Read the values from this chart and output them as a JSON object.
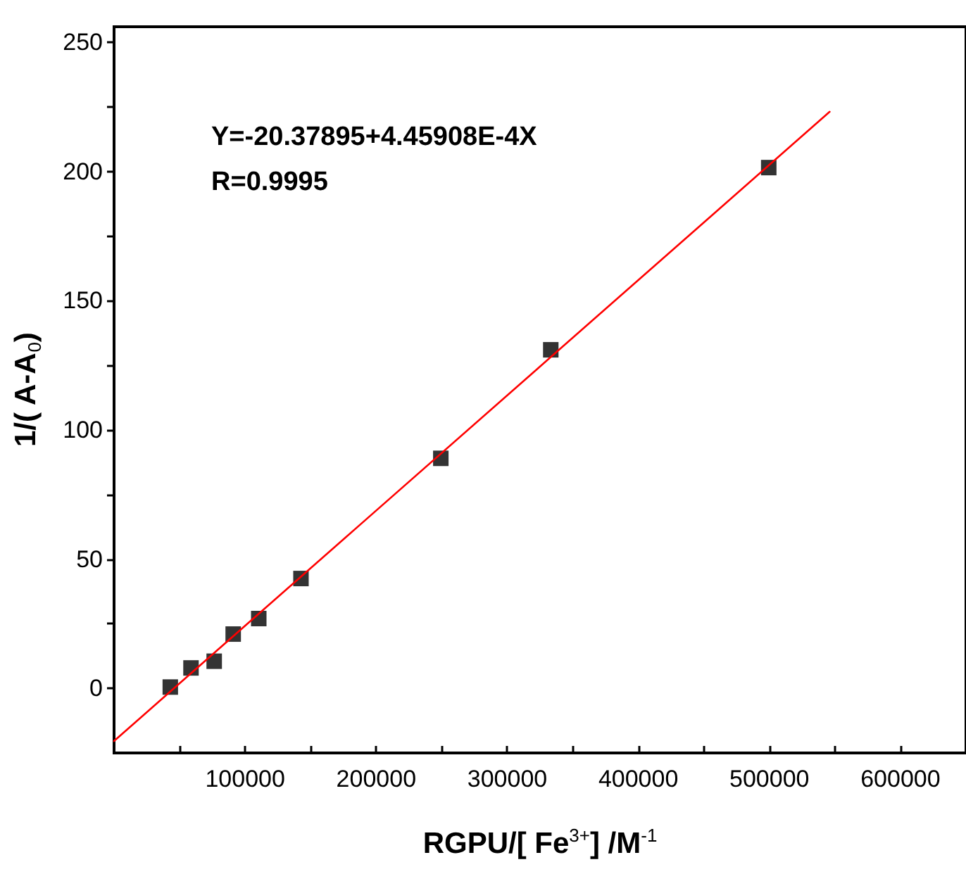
{
  "chart_data": {
    "type": "scatter",
    "xlabel": "RGPU/[ Fe$^{3+}$] /M$^{-1}$",
    "ylabel": "1/( A-A$_{0}$)",
    "annotations": [
      "Y=-20.37895+4.45908E-4X",
      "R=0.9995"
    ],
    "x": [
      42900,
      58700,
      76400,
      90900,
      110400,
      142600,
      249300,
      333200,
      499500
    ],
    "series": [
      {
        "color": "#000000",
        "values": [
          0.5,
          7.9,
          10.5,
          21,
          27,
          42.5,
          89,
          131,
          201.5
        ]
      },
      {
        "type": "line",
        "color": "#ff0000",
        "x": [
          0,
          546000
        ],
        "values": [
          -20.38,
          223.1
        ],
        "marker": "none",
        "line_style": "solid"
      }
    ],
    "marker": "square",
    "xlim": [
      0,
      650000
    ],
    "xticks": [
      {
        "value": 50000,
        "label": null
      },
      100000,
      {
        "value": 150000,
        "label": null
      },
      200000,
      {
        "value": 250000,
        "label": null
      },
      300000,
      {
        "value": 350000,
        "label": null
      },
      400000,
      {
        "value": 450000,
        "label": null
      },
      500000,
      {
        "value": 550000,
        "label": null
      },
      600000
    ],
    "ylim": [
      -25,
      256
    ],
    "yticks": [
      0,
      {
        "value": 25,
        "label": null
      },
      50,
      {
        "value": 75,
        "label": null
      },
      100,
      {
        "value": 125,
        "label": null
      },
      150,
      {
        "value": 175,
        "label": null
      },
      200,
      {
        "value": 225,
        "label": null
      },
      250
    ],
    "grid": false
  }
}
